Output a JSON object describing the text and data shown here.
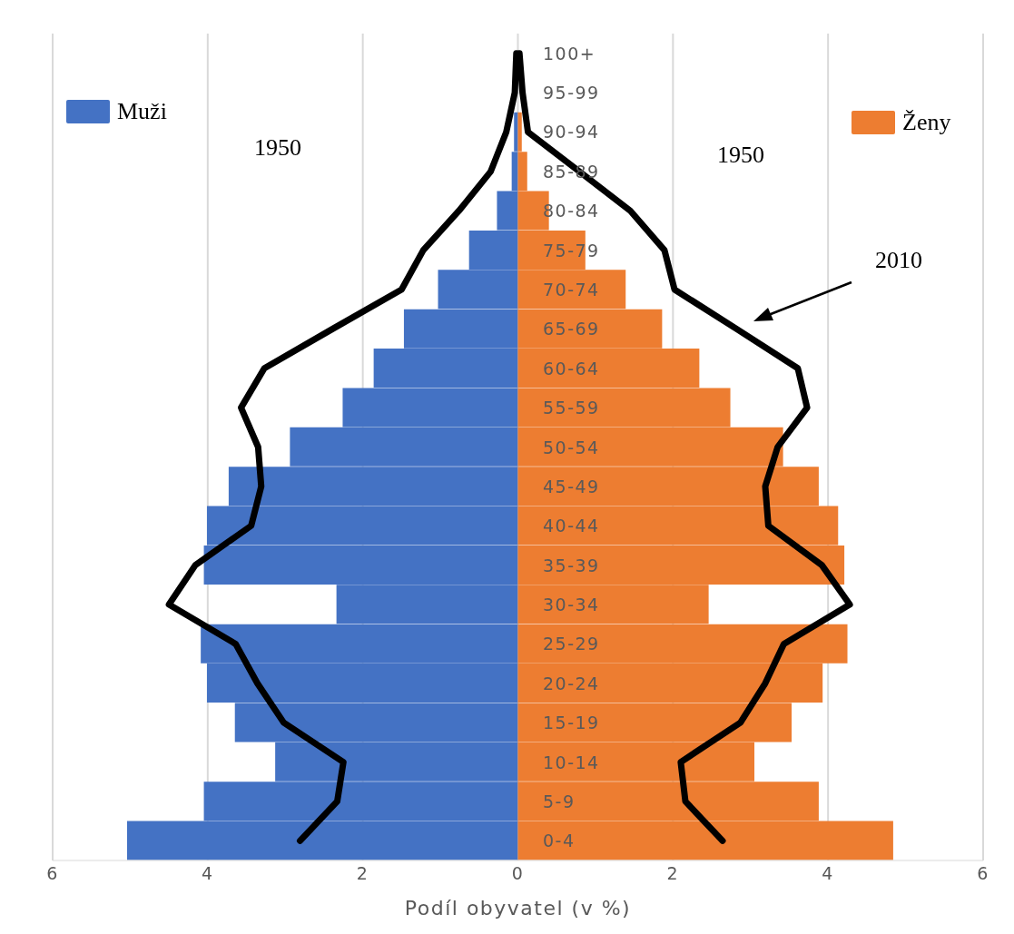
{
  "chart_data": {
    "type": "bar",
    "orientation": "horizontal",
    "xlabel": "Podíl obyvatel (v %)",
    "categories": [
      "100+",
      "95-99",
      "90-94",
      "85-89",
      "80-84",
      "75-79",
      "70-74",
      "65-69",
      "60-64",
      "55-59",
      "50-54",
      "45-49",
      "40-44",
      "35-39",
      "30-34",
      "25-29",
      "20-24",
      "15-19",
      "10-14",
      "5-9",
      "0-4"
    ],
    "series": [
      {
        "name": "Muži",
        "color": "#4472c4",
        "values": [
          null,
          null,
          -0.05,
          -0.08,
          -0.27,
          -0.63,
          -1.03,
          -1.47,
          -1.86,
          -2.26,
          -2.94,
          -3.73,
          -4.01,
          -4.05,
          -2.34,
          -4.09,
          -4.01,
          -3.65,
          -3.13,
          -4.05,
          -5.04
        ]
      },
      {
        "name": "Ženy",
        "color": "#ed7d31",
        "values": [
          null,
          null,
          0.05,
          0.12,
          0.4,
          0.87,
          1.39,
          1.86,
          2.34,
          2.74,
          3.42,
          3.88,
          4.13,
          4.21,
          2.46,
          4.25,
          3.93,
          3.53,
          3.05,
          3.88,
          4.84
        ]
      },
      {
        "type": "line",
        "color": "#000000",
        "values": [
          -0.02,
          -0.04,
          -0.15,
          -0.35,
          -0.76,
          -1.22,
          -1.5,
          -2.39,
          -3.27,
          -3.57,
          -3.35,
          -3.31,
          -3.44,
          -4.16,
          -4.5,
          -3.64,
          -3.36,
          -3.02,
          -2.25,
          -2.33,
          -2.81
        ]
      },
      {
        "type": "line",
        "color": "#000000",
        "values": [
          0.02,
          0.06,
          0.13,
          0.79,
          1.45,
          1.89,
          2.02,
          2.82,
          3.61,
          3.73,
          3.35,
          3.19,
          3.23,
          3.92,
          4.28,
          3.43,
          3.19,
          2.87,
          2.1,
          2.16,
          2.64
        ]
      }
    ],
    "xlim": [
      -6,
      6
    ],
    "xticks": [
      {
        "value": -6,
        "label": "6"
      },
      {
        "value": -4,
        "label": "4"
      },
      {
        "value": -2,
        "label": "2"
      },
      0,
      2,
      4,
      6
    ],
    "grid": "x",
    "legend": "top",
    "stacked": true,
    "annotations": [
      "1950",
      "1950",
      "2010"
    ]
  }
}
